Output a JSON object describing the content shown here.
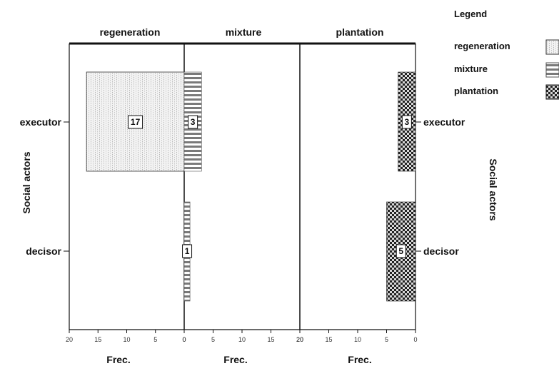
{
  "chart_data": {
    "type": "bar",
    "orientation": "horizontal",
    "layout": "population-pyramid-panels",
    "y_title": "Social actors",
    "categories": [
      "executor",
      "decisor"
    ],
    "panels": [
      {
        "name": "regeneration",
        "direction": "left",
        "xlabel": "Frec.",
        "xlim": [
          20,
          0
        ],
        "ticks": [
          20,
          15,
          10,
          5,
          0
        ]
      },
      {
        "name": "mixture",
        "direction": "right",
        "xlabel": "Frec.",
        "xlim": [
          0,
          20
        ],
        "ticks": [
          0,
          5,
          10,
          15,
          20
        ]
      },
      {
        "name": "plantation",
        "direction": "left",
        "xlabel": "Frec.",
        "xlim": [
          20,
          0
        ],
        "ticks": [
          20,
          15,
          10,
          5,
          0
        ]
      }
    ],
    "series": [
      {
        "name": "regeneration",
        "panel": 0,
        "pattern": "dots",
        "values": [
          17,
          0
        ],
        "labels": [
          "17",
          ""
        ]
      },
      {
        "name": "mixture",
        "panel": 1,
        "pattern": "stripes",
        "values": [
          3,
          1
        ],
        "labels": [
          "3",
          "1"
        ]
      },
      {
        "name": "plantation",
        "panel": 2,
        "pattern": "checker",
        "values": [
          3,
          5
        ],
        "labels": [
          "3",
          "5"
        ]
      }
    ],
    "legend": {
      "title": "Legend",
      "position": "top-right",
      "items": [
        {
          "label": "regeneration",
          "pattern": "dots"
        },
        {
          "label": "mixture",
          "pattern": "stripes"
        },
        {
          "label": "plantation",
          "pattern": "checker"
        }
      ]
    },
    "grid": false
  }
}
